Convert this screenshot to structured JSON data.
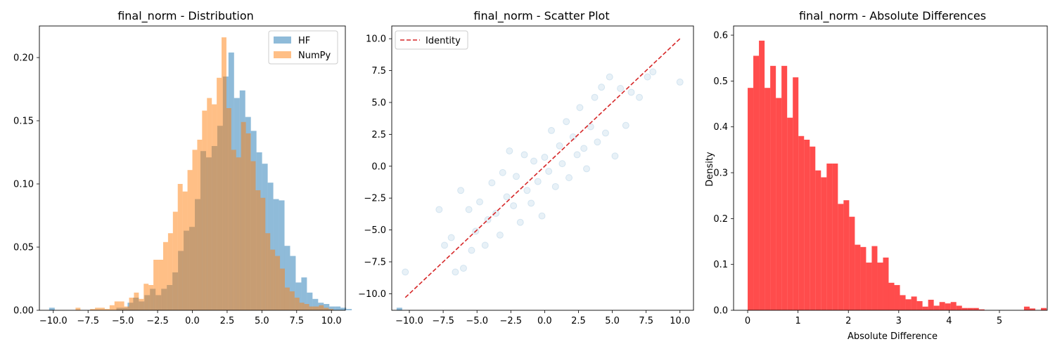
{
  "chart_data": [
    {
      "type": "histogram",
      "title": "final_norm - Distribution",
      "xlabel": "",
      "ylabel": "",
      "xlim": [
        -11.0,
        11.0
      ],
      "ylim": [
        0,
        0.225
      ],
      "xticks": [
        -10.0,
        -7.5,
        -5.0,
        -2.5,
        0.0,
        2.5,
        5.0,
        7.5,
        10.0
      ],
      "xtick_labels": [
        "−10.0",
        "−7.5",
        "−5.0",
        "−2.5",
        "0.0",
        "2.5",
        "5.0",
        "7.5",
        "10.0"
      ],
      "yticks": [
        0.0,
        0.05,
        0.1,
        0.15,
        0.2
      ],
      "ytick_labels": [
        "0.00",
        "0.05",
        "0.10",
        "0.15",
        "0.20"
      ],
      "legend": "top-right",
      "series": [
        {
          "name": "HF",
          "color": "#1f77b4",
          "alpha": 0.5,
          "bin_start": -10.3,
          "bin_width": 0.403,
          "values": [
            0.002,
            0,
            0,
            0,
            0,
            0,
            0,
            0,
            0,
            0,
            0,
            0,
            0.002,
            0.002,
            0.006,
            0.01,
            0.007,
            0.012,
            0.017,
            0.012,
            0.017,
            0.02,
            0.03,
            0.047,
            0.063,
            0.066,
            0.088,
            0.126,
            0.121,
            0.13,
            0.146,
            0.185,
            0.204,
            0.168,
            0.174,
            0.153,
            0.142,
            0.125,
            0.116,
            0.101,
            0.088,
            0.087,
            0.051,
            0.043,
            0.022,
            0.026,
            0.014,
            0.009,
            0.006,
            0.005,
            0.003,
            0.003,
            0.002,
            0.001,
            0,
            0,
            0,
            0,
            0,
            0,
            0,
            0,
            0.002
          ]
        },
        {
          "name": "NumPy",
          "color": "#ff7f0e",
          "alpha": 0.5,
          "bin_start": -8.4,
          "bin_width": 0.35,
          "values": [
            0.002,
            0,
            0,
            0.001,
            0.002,
            0.002,
            0.001,
            0.004,
            0.007,
            0.007,
            0.003,
            0.01,
            0.014,
            0.009,
            0.021,
            0.02,
            0.04,
            0.04,
            0.054,
            0.061,
            0.078,
            0.1,
            0.094,
            0.111,
            0.127,
            0.135,
            0.158,
            0.168,
            0.163,
            0.184,
            0.216,
            0.16,
            0.127,
            0.121,
            0.149,
            0.14,
            0.118,
            0.095,
            0.089,
            0.061,
            0.048,
            0.043,
            0.033,
            0.018,
            0.015,
            0.01,
            0.006,
            0.005,
            0.003,
            0.003,
            0.004,
            0.002,
            0.001
          ]
        }
      ]
    },
    {
      "type": "scatter",
      "title": "final_norm - Scatter Plot",
      "xlabel": "",
      "ylabel": "",
      "xlim": [
        -11.3,
        11.0
      ],
      "ylim": [
        -11.3,
        11.0
      ],
      "xticks": [
        -10.0,
        -7.5,
        -5.0,
        -2.5,
        0.0,
        2.5,
        5.0,
        7.5,
        10.0
      ],
      "xtick_labels": [
        "−10.0",
        "−7.5",
        "−5.0",
        "−2.5",
        "0.0",
        "2.5",
        "5.0",
        "7.5",
        "10.0"
      ],
      "yticks": [
        -10.0,
        -7.5,
        -5.0,
        -2.5,
        0.0,
        2.5,
        5.0,
        7.5,
        10.0
      ],
      "ytick_labels": [
        "−10.0",
        "−7.5",
        "−5.0",
        "−2.5",
        "0.0",
        "2.5",
        "5.0",
        "7.5",
        "10.0"
      ],
      "legend": "top-left",
      "point_color": "#1f77b4",
      "point_alpha": 0.1,
      "points": [
        [
          -10.3,
          -8.3
        ],
        [
          -7.8,
          -3.4
        ],
        [
          -7.4,
          -6.2
        ],
        [
          -6.9,
          -5.6
        ],
        [
          -6.6,
          -8.3
        ],
        [
          -6.2,
          -1.9
        ],
        [
          -6.0,
          -8.0
        ],
        [
          -5.6,
          -3.4
        ],
        [
          -5.4,
          -6.6
        ],
        [
          -5.1,
          -5.1
        ],
        [
          -4.8,
          -2.8
        ],
        [
          -4.4,
          -6.2
        ],
        [
          -4.2,
          -4.2
        ],
        [
          -3.9,
          -1.3
        ],
        [
          -3.6,
          -3.7
        ],
        [
          -3.3,
          -5.4
        ],
        [
          -3.1,
          -0.5
        ],
        [
          -2.8,
          -2.4
        ],
        [
          -2.6,
          1.2
        ],
        [
          -2.3,
          -3.1
        ],
        [
          -2.1,
          -0.8
        ],
        [
          -1.8,
          -4.4
        ],
        [
          -1.5,
          0.9
        ],
        [
          -1.3,
          -1.9
        ],
        [
          -1.0,
          -2.9
        ],
        [
          -0.8,
          0.4
        ],
        [
          -0.5,
          -1.2
        ],
        [
          -0.2,
          -3.9
        ],
        [
          0.0,
          0.7
        ],
        [
          0.3,
          -0.4
        ],
        [
          0.5,
          2.8
        ],
        [
          0.8,
          -1.6
        ],
        [
          1.1,
          1.6
        ],
        [
          1.3,
          0.2
        ],
        [
          1.6,
          3.5
        ],
        [
          1.8,
          -0.9
        ],
        [
          2.1,
          2.3
        ],
        [
          2.4,
          0.9
        ],
        [
          2.6,
          4.6
        ],
        [
          2.9,
          1.4
        ],
        [
          3.1,
          -0.2
        ],
        [
          3.4,
          3.1
        ],
        [
          3.7,
          5.4
        ],
        [
          3.9,
          1.9
        ],
        [
          4.2,
          6.2
        ],
        [
          4.5,
          2.6
        ],
        [
          4.8,
          7.0
        ],
        [
          5.2,
          0.8
        ],
        [
          5.6,
          6.1
        ],
        [
          6.0,
          3.2
        ],
        [
          6.4,
          5.8
        ],
        [
          7.0,
          5.4
        ],
        [
          7.6,
          7.0
        ],
        [
          8.0,
          7.4
        ],
        [
          10.0,
          6.6
        ]
      ],
      "identity_line": {
        "name": "Identity",
        "color": "#d62728",
        "dashed": true,
        "from": [
          -10.3,
          -10.3
        ],
        "to": [
          10.0,
          10.0
        ]
      }
    },
    {
      "type": "histogram",
      "title": "final_norm - Absolute Differences",
      "xlabel": "Absolute Difference",
      "ylabel": "Density",
      "xlim": [
        -0.28,
        5.95
      ],
      "ylim": [
        0,
        0.62
      ],
      "xticks": [
        0,
        1,
        2,
        3,
        4,
        5
      ],
      "xtick_labels": [
        "0",
        "1",
        "2",
        "3",
        "4",
        "5"
      ],
      "yticks": [
        0.0,
        0.1,
        0.2,
        0.3,
        0.4,
        0.5,
        0.6
      ],
      "ytick_labels": [
        "0.0",
        "0.1",
        "0.2",
        "0.3",
        "0.4",
        "0.5",
        "0.6"
      ],
      "series": [
        {
          "name": "",
          "color": "#ff0000",
          "alpha": 0.7,
          "bin_start": 0,
          "bin_width": 0.112,
          "values": [
            0.485,
            0.555,
            0.588,
            0.485,
            0.533,
            0.463,
            0.533,
            0.42,
            0.508,
            0.38,
            0.372,
            0.357,
            0.305,
            0.29,
            0.32,
            0.32,
            0.232,
            0.24,
            0.204,
            0.143,
            0.138,
            0.104,
            0.14,
            0.104,
            0.115,
            0.06,
            0.055,
            0.033,
            0.024,
            0.03,
            0.02,
            0.008,
            0.023,
            0.01,
            0.018,
            0.015,
            0.018,
            0.01,
            0.005,
            0.005,
            0.005,
            0.002,
            0,
            0,
            0,
            0,
            0,
            0,
            0,
            0.008,
            0.004,
            0,
            0.005
          ]
        }
      ]
    }
  ]
}
